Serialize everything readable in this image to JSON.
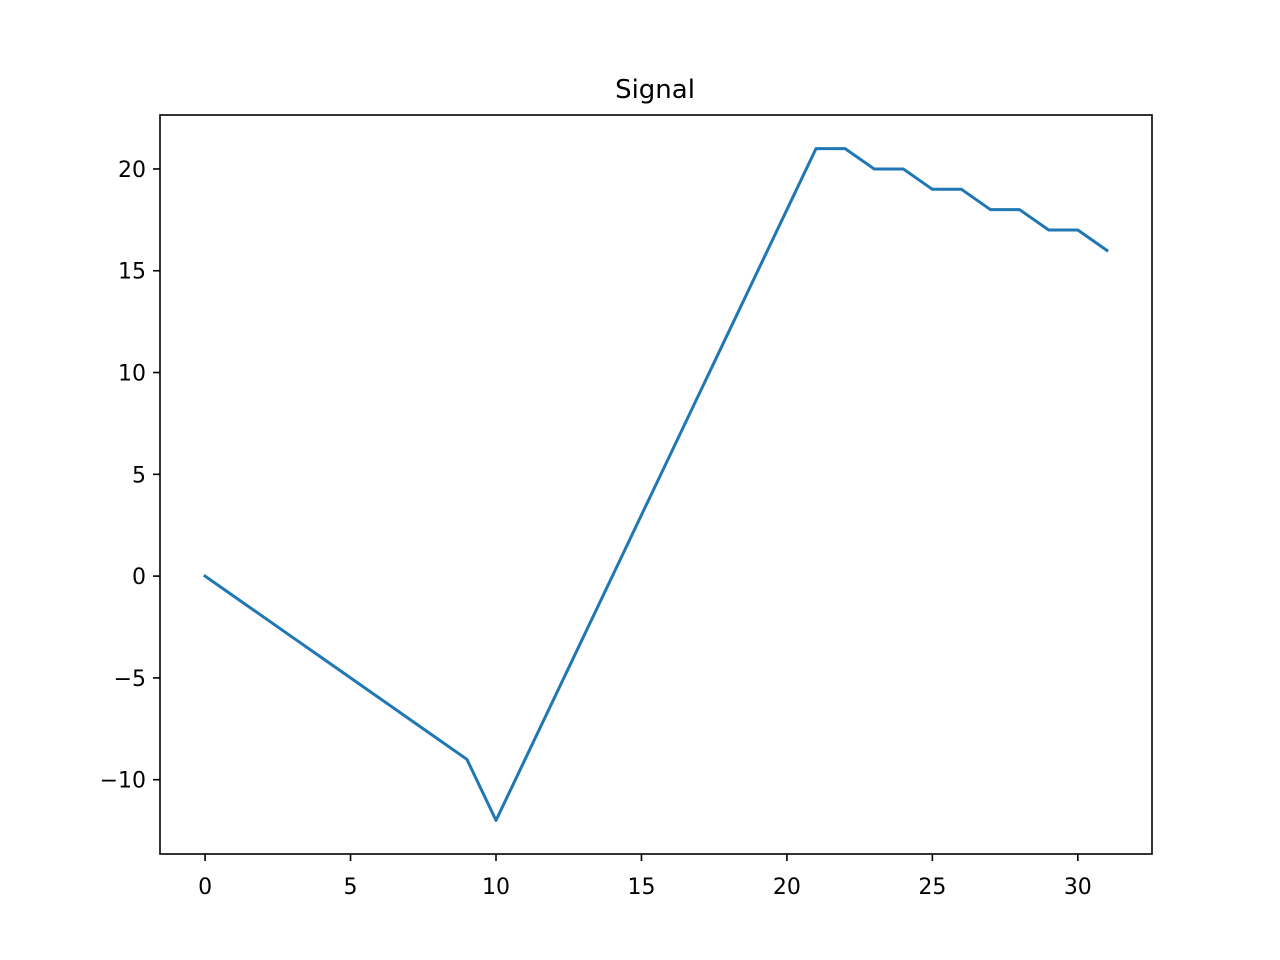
{
  "chart_data": {
    "type": "line",
    "title": "Signal",
    "xlabel": "",
    "ylabel": "",
    "x": [
      0,
      1,
      2,
      3,
      4,
      5,
      6,
      7,
      8,
      9,
      10,
      11,
      12,
      13,
      14,
      15,
      16,
      17,
      18,
      19,
      20,
      21,
      22,
      23,
      24,
      25,
      26,
      27,
      28,
      29,
      30,
      31
    ],
    "series": [
      {
        "values": [
          0,
          -1,
          -2,
          -3,
          -4,
          -5,
          -6,
          -7,
          -8,
          -9,
          -12,
          -9,
          -6,
          -3,
          0,
          3,
          6,
          9,
          12,
          15,
          18,
          21,
          21,
          20,
          20,
          19,
          19,
          18,
          18,
          17,
          17,
          16
        ],
        "color": "#1f77b4"
      }
    ],
    "xlim": [
      -1.55,
      32.55
    ],
    "ylim": [
      -13.65,
      22.65
    ],
    "xticks": [
      0,
      5,
      10,
      15,
      20,
      25,
      30
    ],
    "xtick_labels": [
      "0",
      "5",
      "10",
      "15",
      "20",
      "25",
      "30"
    ],
    "yticks": [
      -10,
      -5,
      0,
      5,
      10,
      15,
      20
    ],
    "ytick_labels": [
      "−10",
      "−5",
      "0",
      "5",
      "10",
      "15",
      "20"
    ],
    "grid": false,
    "legend": false
  }
}
